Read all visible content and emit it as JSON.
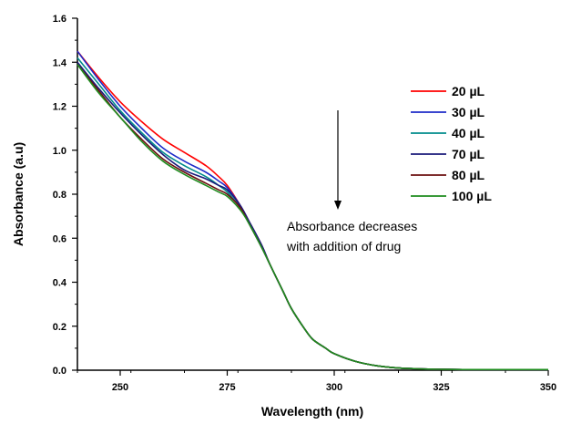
{
  "chart_data": {
    "type": "line",
    "title": "",
    "xlabel": "Wavelength (nm)",
    "ylabel": "Absorbance (a.u)",
    "xlim": [
      240,
      350
    ],
    "ylim": [
      0.0,
      1.6
    ],
    "xticks": [
      250,
      275,
      300,
      325,
      350
    ],
    "xtick_labels": [
      "250",
      "275",
      "300",
      "325",
      "350"
    ],
    "yticks": [
      0.0,
      0.2,
      0.4,
      0.6,
      0.8,
      1.0,
      1.2,
      1.4,
      1.6
    ],
    "ytick_labels": [
      "0.0",
      "0.2",
      "0.4",
      "0.6",
      "0.8",
      "1.0",
      "1.2",
      "1.4",
      "1.6"
    ],
    "grid": false,
    "legend_position": "right",
    "x": [
      240,
      245,
      250,
      255,
      260,
      265,
      270,
      273,
      275,
      278,
      280,
      283,
      285,
      288,
      290,
      293,
      295,
      298,
      300,
      305,
      310,
      315,
      320,
      325,
      330,
      340,
      350
    ],
    "series": [
      {
        "name": "20 µL",
        "color": "#ff0000",
        "values": [
          1.45,
          1.33,
          1.22,
          1.13,
          1.05,
          0.99,
          0.93,
          0.88,
          0.84,
          0.75,
          0.68,
          0.57,
          0.48,
          0.36,
          0.28,
          0.19,
          0.14,
          0.1,
          0.075,
          0.04,
          0.02,
          0.01,
          0.006,
          0.004,
          0.003,
          0.003,
          0.003
        ]
      },
      {
        "name": "30 µL",
        "color": "#1e2bc8",
        "values": [
          1.45,
          1.32,
          1.2,
          1.1,
          1.01,
          0.95,
          0.9,
          0.86,
          0.83,
          0.75,
          0.68,
          0.57,
          0.48,
          0.36,
          0.28,
          0.19,
          0.14,
          0.1,
          0.075,
          0.04,
          0.02,
          0.01,
          0.006,
          0.004,
          0.003,
          0.003,
          0.003
        ]
      },
      {
        "name": "40 µL",
        "color": "#008b8b",
        "values": [
          1.42,
          1.3,
          1.18,
          1.08,
          0.99,
          0.93,
          0.88,
          0.84,
          0.81,
          0.74,
          0.67,
          0.56,
          0.48,
          0.36,
          0.28,
          0.19,
          0.14,
          0.1,
          0.075,
          0.04,
          0.02,
          0.01,
          0.006,
          0.004,
          0.003,
          0.003,
          0.003
        ]
      },
      {
        "name": "70 µL",
        "color": "#1a1a7a",
        "values": [
          1.4,
          1.28,
          1.17,
          1.07,
          0.98,
          0.91,
          0.87,
          0.84,
          0.82,
          0.75,
          0.68,
          0.57,
          0.48,
          0.36,
          0.28,
          0.19,
          0.14,
          0.1,
          0.075,
          0.04,
          0.02,
          0.01,
          0.006,
          0.004,
          0.003,
          0.003,
          0.003
        ]
      },
      {
        "name": "80 µL",
        "color": "#6b0f0f",
        "values": [
          1.39,
          1.27,
          1.15,
          1.05,
          0.96,
          0.9,
          0.85,
          0.82,
          0.8,
          0.74,
          0.67,
          0.56,
          0.48,
          0.36,
          0.28,
          0.19,
          0.14,
          0.1,
          0.075,
          0.04,
          0.02,
          0.01,
          0.006,
          0.004,
          0.003,
          0.003,
          0.003
        ]
      },
      {
        "name": "100 µL",
        "color": "#1e8c1e",
        "values": [
          1.39,
          1.26,
          1.15,
          1.04,
          0.95,
          0.89,
          0.84,
          0.81,
          0.79,
          0.73,
          0.67,
          0.56,
          0.48,
          0.36,
          0.28,
          0.19,
          0.14,
          0.1,
          0.075,
          0.04,
          0.02,
          0.01,
          0.006,
          0.004,
          0.003,
          0.003,
          0.003
        ]
      }
    ],
    "annotations": [
      {
        "text": "Absorbance decreases"
      },
      {
        "text": "with addition of drug"
      }
    ]
  }
}
